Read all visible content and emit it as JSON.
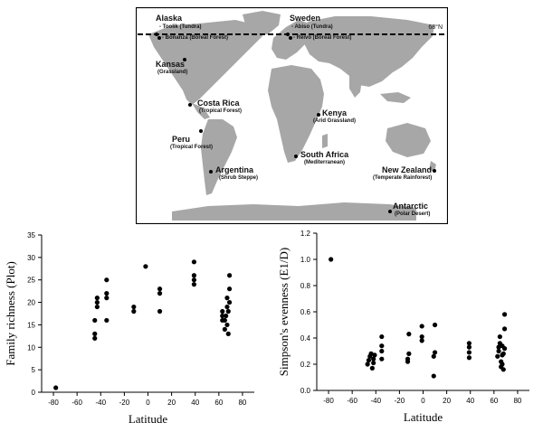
{
  "map": {
    "parallel_label": "68°N",
    "sites": [
      {
        "name": "Alaska",
        "sub": ""
      },
      {
        "name": "",
        "sub": "- Toolik (Tundra)"
      },
      {
        "name": "",
        "sub": "- Bonanza (Boreal Forest)"
      },
      {
        "name": "Sweden",
        "sub": ""
      },
      {
        "name": "",
        "sub": "- Abiso (Tundra)"
      },
      {
        "name": "",
        "sub": "- Reivo (Boreal Forest)"
      },
      {
        "name": "Kansas",
        "sub": "(Grassland)"
      },
      {
        "name": "Costa Rica",
        "sub": "(Tropical Forest)"
      },
      {
        "name": "Peru",
        "sub": "(Tropical Forest)"
      },
      {
        "name": "Argentina",
        "sub": "(Shrub Steppe)"
      },
      {
        "name": "Kenya",
        "sub": "(Arid Grassland)"
      },
      {
        "name": "South Africa",
        "sub": "(Mediterranean)"
      },
      {
        "name": "New Zealand",
        "sub": "(Temperate Rainforest)"
      },
      {
        "name": "Antarctic",
        "sub": "(Polar Desert)"
      }
    ]
  },
  "chart_data": [
    {
      "type": "scatter",
      "xlabel": "Latitude",
      "ylabel": "Family richness (Plot)",
      "xlim": [
        -90,
        90
      ],
      "ylim": [
        0,
        35
      ],
      "xticks": [
        "-80",
        "-60",
        "-40",
        "-20",
        "0",
        "20",
        "40",
        "60",
        "80"
      ],
      "yticks": [
        "0",
        "5",
        "10",
        "15",
        "20",
        "25",
        "30",
        "35"
      ],
      "points": [
        [
          -78,
          1
        ],
        [
          -45,
          12
        ],
        [
          -45,
          13
        ],
        [
          -45,
          16
        ],
        [
          -43,
          19
        ],
        [
          -43,
          20
        ],
        [
          -43,
          21
        ],
        [
          -35,
          16
        ],
        [
          -35,
          21
        ],
        [
          -35,
          22
        ],
        [
          -35,
          25
        ],
        [
          -12,
          18
        ],
        [
          -12,
          19
        ],
        [
          -2,
          28
        ],
        [
          10,
          18
        ],
        [
          10,
          22
        ],
        [
          10,
          23
        ],
        [
          39,
          24
        ],
        [
          39,
          25
        ],
        [
          39,
          26
        ],
        [
          39,
          29
        ],
        [
          63,
          16
        ],
        [
          63,
          17
        ],
        [
          63,
          18
        ],
        [
          65,
          14
        ],
        [
          65,
          16
        ],
        [
          66,
          17
        ],
        [
          67,
          15
        ],
        [
          67,
          19
        ],
        [
          67,
          21
        ],
        [
          68,
          13
        ],
        [
          68,
          18
        ],
        [
          69,
          20
        ],
        [
          69,
          23
        ],
        [
          69,
          26
        ]
      ]
    },
    {
      "type": "scatter",
      "xlabel": "Latitude",
      "ylabel": "Simpson's evenness (E1/D)",
      "xlim": [
        -90,
        90
      ],
      "ylim": [
        0,
        1.2
      ],
      "xticks": [
        "-80",
        "-60",
        "-40",
        "-20",
        "0",
        "20",
        "40",
        "60",
        "80"
      ],
      "yticks": [
        "0.0",
        "0.2",
        "0.4",
        "0.6",
        "0.8",
        "1.0",
        "1.2"
      ],
      "points": [
        [
          -78,
          1.0
        ],
        [
          -47,
          0.2
        ],
        [
          -46,
          0.23
        ],
        [
          -45,
          0.26
        ],
        [
          -44,
          0.28
        ],
        [
          -43,
          0.17
        ],
        [
          -42,
          0.21
        ],
        [
          -42,
          0.24
        ],
        [
          -41,
          0.27
        ],
        [
          -35,
          0.24
        ],
        [
          -35,
          0.3
        ],
        [
          -35,
          0.34
        ],
        [
          -35,
          0.41
        ],
        [
          -13,
          0.22
        ],
        [
          -13,
          0.24
        ],
        [
          -12,
          0.28
        ],
        [
          -12,
          0.43
        ],
        [
          -1,
          0.38
        ],
        [
          -1,
          0.41
        ],
        [
          -1,
          0.49
        ],
        [
          9,
          0.11
        ],
        [
          9,
          0.26
        ],
        [
          10,
          0.29
        ],
        [
          10,
          0.5
        ],
        [
          39,
          0.25
        ],
        [
          39,
          0.29
        ],
        [
          39,
          0.33
        ],
        [
          39,
          0.36
        ],
        [
          63,
          0.26
        ],
        [
          64,
          0.3
        ],
        [
          64,
          0.33
        ],
        [
          65,
          0.36
        ],
        [
          65,
          0.41
        ],
        [
          66,
          0.18
        ],
        [
          66,
          0.22
        ],
        [
          67,
          0.2
        ],
        [
          67,
          0.27
        ],
        [
          67,
          0.34
        ],
        [
          68,
          0.16
        ],
        [
          68,
          0.28
        ],
        [
          69,
          0.32
        ],
        [
          69,
          0.47
        ],
        [
          69,
          0.58
        ]
      ]
    }
  ]
}
